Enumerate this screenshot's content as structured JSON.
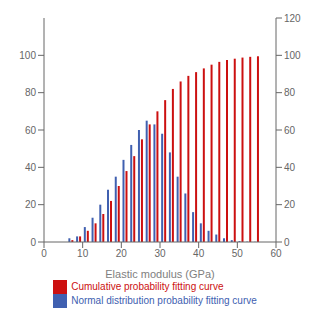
{
  "chart_data": {
    "type": "bar",
    "xlabel": "Elastic modulus (GPa)",
    "x": [
      7,
      9,
      11,
      13,
      15,
      17,
      19,
      21,
      23,
      25,
      27,
      29,
      31,
      33,
      35,
      37,
      39,
      41,
      43,
      45,
      47,
      49,
      51,
      53,
      55
    ],
    "series": [
      {
        "name": "Normal distribution probability fitting curve",
        "color": "#4060B0",
        "axis": "y",
        "values": [
          2,
          3,
          8,
          13,
          20,
          28,
          35,
          44,
          52,
          60,
          65,
          63,
          58,
          48,
          35,
          26,
          16,
          10,
          6,
          4,
          2,
          1,
          0.5,
          0.2,
          0.1
        ]
      },
      {
        "name": "Cumulative probability fitting curve",
        "color": "#CC1010",
        "axis": "y2",
        "values": [
          1,
          3,
          6,
          10,
          15,
          22,
          30,
          38,
          46,
          55,
          63,
          70,
          76,
          82,
          86,
          89,
          91,
          93,
          95,
          96.5,
          97.5,
          98.2,
          98.8,
          99.2,
          99.5
        ]
      }
    ],
    "xlim": [
      0,
      60
    ],
    "xticks": [
      0,
      10,
      20,
      30,
      40,
      50,
      60
    ],
    "ylim": [
      0,
      120
    ],
    "yticks": [
      0,
      20,
      40,
      60,
      80,
      100
    ],
    "y2lim": [
      0,
      120
    ],
    "y2ticks": [
      0,
      20,
      40,
      60,
      80,
      100,
      120
    ],
    "legend": "bottom",
    "grid": false
  }
}
